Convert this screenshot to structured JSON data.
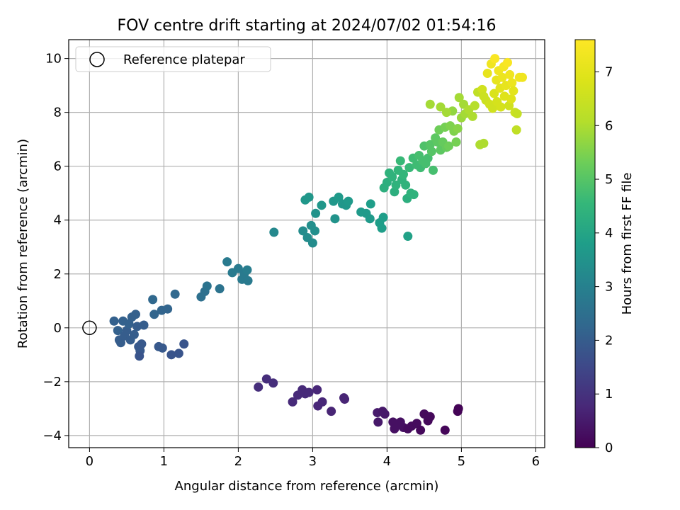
{
  "chart_data": {
    "type": "scatter",
    "title": "FOV centre drift starting at 2024/07/02 01:54:16",
    "xlabel": "Angular distance from reference (arcmin)",
    "ylabel": "Rotation from reference (arcmin)",
    "xlim": [
      -0.28,
      6.12
    ],
    "ylim": [
      -4.45,
      10.7
    ],
    "xticks": [
      0,
      1,
      2,
      3,
      4,
      5,
      6
    ],
    "xtick_labels": [
      "0",
      "1",
      "2",
      "3",
      "4",
      "5",
      "6"
    ],
    "yticks": [
      -4,
      -2,
      0,
      2,
      4,
      6,
      8,
      10
    ],
    "ytick_labels": [
      "−4",
      "−2",
      "0",
      "2",
      "4",
      "6",
      "8",
      "10"
    ],
    "grid": true,
    "legend": {
      "position": "top-left",
      "label": "Reference platepar",
      "marker": "open-circle"
    },
    "colorbar": {
      "label": "Hours from first FF file",
      "range": [
        0,
        7.6
      ],
      "ticks": [
        0,
        1,
        2,
        3,
        4,
        5,
        6,
        7
      ],
      "tick_labels": [
        "0",
        "1",
        "2",
        "3",
        "4",
        "5",
        "6",
        "7"
      ],
      "colormap": "viridis"
    },
    "reference_point": {
      "x": 0,
      "y": 0,
      "name": "Reference platepar"
    },
    "points": [
      {
        "x": 2.27,
        "y": -2.2,
        "t": 0.9
      },
      {
        "x": 2.38,
        "y": -1.9,
        "t": 0.9
      },
      {
        "x": 2.47,
        "y": -2.05,
        "t": 0.9
      },
      {
        "x": 2.73,
        "y": -2.75,
        "t": 0.8
      },
      {
        "x": 2.8,
        "y": -2.5,
        "t": 0.8
      },
      {
        "x": 2.86,
        "y": -2.3,
        "t": 0.8
      },
      {
        "x": 2.9,
        "y": -2.45,
        "t": 0.8
      },
      {
        "x": 2.95,
        "y": -2.4,
        "t": 0.8
      },
      {
        "x": 3.06,
        "y": -2.3,
        "t": 0.75
      },
      {
        "x": 3.07,
        "y": -2.9,
        "t": 0.75
      },
      {
        "x": 3.13,
        "y": -2.75,
        "t": 0.75
      },
      {
        "x": 3.25,
        "y": -3.1,
        "t": 0.7
      },
      {
        "x": 3.42,
        "y": -2.6,
        "t": 0.7
      },
      {
        "x": 3.43,
        "y": -2.65,
        "t": 0.7
      },
      {
        "x": 3.87,
        "y": -3.15,
        "t": 0.5
      },
      {
        "x": 3.88,
        "y": -3.5,
        "t": 0.45
      },
      {
        "x": 3.94,
        "y": -3.1,
        "t": 0.45
      },
      {
        "x": 3.97,
        "y": -3.2,
        "t": 0.45
      },
      {
        "x": 4.08,
        "y": -3.5,
        "t": 0.3
      },
      {
        "x": 4.1,
        "y": -3.75,
        "t": 0.3
      },
      {
        "x": 4.15,
        "y": -3.6,
        "t": 0.3
      },
      {
        "x": 4.18,
        "y": -3.5,
        "t": 0.3
      },
      {
        "x": 4.22,
        "y": -3.7,
        "t": 0.3
      },
      {
        "x": 4.28,
        "y": -3.75,
        "t": 0.2
      },
      {
        "x": 4.33,
        "y": -3.65,
        "t": 0.2
      },
      {
        "x": 4.4,
        "y": -3.55,
        "t": 0.2
      },
      {
        "x": 4.45,
        "y": -3.8,
        "t": 0.15
      },
      {
        "x": 4.5,
        "y": -3.2,
        "t": 0.15
      },
      {
        "x": 4.55,
        "y": -3.45,
        "t": 0.15
      },
      {
        "x": 4.58,
        "y": -3.3,
        "t": 0.15
      },
      {
        "x": 4.78,
        "y": -3.8,
        "t": 0.1
      },
      {
        "x": 4.95,
        "y": -3.1,
        "t": 0.05
      },
      {
        "x": 4.96,
        "y": -3.0,
        "t": 0.05
      },
      {
        "x": 0.33,
        "y": 0.25,
        "t": 2.1
      },
      {
        "x": 0.38,
        "y": -0.1,
        "t": 2.1
      },
      {
        "x": 0.4,
        "y": -0.45,
        "t": 2.0
      },
      {
        "x": 0.42,
        "y": -0.55,
        "t": 2.0
      },
      {
        "x": 0.45,
        "y": 0.25,
        "t": 2.1
      },
      {
        "x": 0.47,
        "y": -0.3,
        "t": 2.0
      },
      {
        "x": 0.5,
        "y": -0.1,
        "t": 2.0
      },
      {
        "x": 0.53,
        "y": 0.15,
        "t": 2.1
      },
      {
        "x": 0.55,
        "y": -0.45,
        "t": 2.0
      },
      {
        "x": 0.57,
        "y": 0.4,
        "t": 2.1
      },
      {
        "x": 0.6,
        "y": -0.25,
        "t": 2.0
      },
      {
        "x": 0.62,
        "y": 0.5,
        "t": 2.1
      },
      {
        "x": 0.64,
        "y": 0.05,
        "t": 2.0
      },
      {
        "x": 0.66,
        "y": -0.7,
        "t": 1.9
      },
      {
        "x": 0.68,
        "y": -0.85,
        "t": 1.9
      },
      {
        "x": 0.7,
        "y": -0.6,
        "t": 1.9
      },
      {
        "x": 0.67,
        "y": -1.05,
        "t": 1.8
      },
      {
        "x": 0.73,
        "y": 0.1,
        "t": 2.0
      },
      {
        "x": 0.85,
        "y": 1.05,
        "t": 2.3
      },
      {
        "x": 0.87,
        "y": 0.5,
        "t": 2.2
      },
      {
        "x": 0.93,
        "y": -0.7,
        "t": 1.9
      },
      {
        "x": 0.98,
        "y": -0.75,
        "t": 1.9
      },
      {
        "x": 0.97,
        "y": 0.65,
        "t": 2.2
      },
      {
        "x": 1.05,
        "y": 0.7,
        "t": 2.2
      },
      {
        "x": 1.1,
        "y": -1.0,
        "t": 1.8
      },
      {
        "x": 1.15,
        "y": 1.25,
        "t": 2.3
      },
      {
        "x": 1.2,
        "y": -0.95,
        "t": 1.8
      },
      {
        "x": 1.27,
        "y": -0.6,
        "t": 1.8
      },
      {
        "x": 1.5,
        "y": 1.15,
        "t": 2.5
      },
      {
        "x": 1.55,
        "y": 1.35,
        "t": 2.5
      },
      {
        "x": 1.58,
        "y": 1.55,
        "t": 2.6
      },
      {
        "x": 1.75,
        "y": 1.45,
        "t": 2.6
      },
      {
        "x": 1.85,
        "y": 2.45,
        "t": 2.8
      },
      {
        "x": 1.92,
        "y": 2.05,
        "t": 2.8
      },
      {
        "x": 2.0,
        "y": 2.2,
        "t": 2.8
      },
      {
        "x": 2.05,
        "y": 1.8,
        "t": 2.8
      },
      {
        "x": 2.08,
        "y": 2.0,
        "t": 2.8
      },
      {
        "x": 2.12,
        "y": 2.15,
        "t": 2.9
      },
      {
        "x": 2.13,
        "y": 1.75,
        "t": 2.8
      },
      {
        "x": 2.48,
        "y": 3.55,
        "t": 3.2
      },
      {
        "x": 2.87,
        "y": 3.6,
        "t": 3.3
      },
      {
        "x": 2.9,
        "y": 4.75,
        "t": 3.6
      },
      {
        "x": 2.93,
        "y": 3.35,
        "t": 3.3
      },
      {
        "x": 2.95,
        "y": 4.85,
        "t": 3.6
      },
      {
        "x": 2.98,
        "y": 3.8,
        "t": 3.4
      },
      {
        "x": 3.0,
        "y": 3.15,
        "t": 3.3
      },
      {
        "x": 3.03,
        "y": 3.6,
        "t": 3.4
      },
      {
        "x": 3.04,
        "y": 4.25,
        "t": 3.5
      },
      {
        "x": 3.12,
        "y": 4.55,
        "t": 3.6
      },
      {
        "x": 3.28,
        "y": 4.7,
        "t": 3.6
      },
      {
        "x": 3.3,
        "y": 4.05,
        "t": 3.5
      },
      {
        "x": 3.35,
        "y": 4.85,
        "t": 3.7
      },
      {
        "x": 3.4,
        "y": 4.6,
        "t": 3.6
      },
      {
        "x": 3.45,
        "y": 4.55,
        "t": 3.6
      },
      {
        "x": 3.48,
        "y": 4.7,
        "t": 3.7
      },
      {
        "x": 3.65,
        "y": 4.3,
        "t": 3.7
      },
      {
        "x": 3.72,
        "y": 4.25,
        "t": 3.7
      },
      {
        "x": 3.77,
        "y": 4.05,
        "t": 3.7
      },
      {
        "x": 3.78,
        "y": 4.6,
        "t": 3.8
      },
      {
        "x": 3.9,
        "y": 3.9,
        "t": 3.8
      },
      {
        "x": 3.93,
        "y": 3.7,
        "t": 3.8
      },
      {
        "x": 3.95,
        "y": 4.1,
        "t": 3.8
      },
      {
        "x": 4.28,
        "y": 3.4,
        "t": 3.9
      },
      {
        "x": 3.96,
        "y": 5.2,
        "t": 4.3
      },
      {
        "x": 4.0,
        "y": 5.4,
        "t": 4.3
      },
      {
        "x": 4.03,
        "y": 5.75,
        "t": 4.4
      },
      {
        "x": 4.07,
        "y": 5.6,
        "t": 4.4
      },
      {
        "x": 4.1,
        "y": 5.05,
        "t": 4.3
      },
      {
        "x": 4.12,
        "y": 5.3,
        "t": 4.4
      },
      {
        "x": 4.15,
        "y": 5.85,
        "t": 4.5
      },
      {
        "x": 4.18,
        "y": 6.2,
        "t": 4.6
      },
      {
        "x": 4.2,
        "y": 5.5,
        "t": 4.4
      },
      {
        "x": 4.22,
        "y": 5.7,
        "t": 4.5
      },
      {
        "x": 4.25,
        "y": 5.3,
        "t": 4.4
      },
      {
        "x": 4.27,
        "y": 4.8,
        "t": 4.3
      },
      {
        "x": 4.3,
        "y": 5.95,
        "t": 4.6
      },
      {
        "x": 4.32,
        "y": 5.0,
        "t": 4.4
      },
      {
        "x": 4.35,
        "y": 6.3,
        "t": 4.7
      },
      {
        "x": 4.36,
        "y": 4.95,
        "t": 4.4
      },
      {
        "x": 4.4,
        "y": 6.05,
        "t": 4.7
      },
      {
        "x": 4.43,
        "y": 6.4,
        "t": 4.8
      },
      {
        "x": 4.45,
        "y": 5.95,
        "t": 4.7
      },
      {
        "x": 4.48,
        "y": 6.2,
        "t": 4.8
      },
      {
        "x": 4.5,
        "y": 6.75,
        "t": 4.9
      },
      {
        "x": 4.52,
        "y": 6.1,
        "t": 4.8
      },
      {
        "x": 4.55,
        "y": 6.3,
        "t": 4.8
      },
      {
        "x": 4.58,
        "y": 6.8,
        "t": 5.0
      },
      {
        "x": 4.6,
        "y": 6.55,
        "t": 5.0
      },
      {
        "x": 4.62,
        "y": 5.85,
        "t": 4.8
      },
      {
        "x": 4.65,
        "y": 7.05,
        "t": 5.1
      },
      {
        "x": 4.68,
        "y": 6.9,
        "t": 5.1
      },
      {
        "x": 4.7,
        "y": 7.35,
        "t": 5.3
      },
      {
        "x": 4.72,
        "y": 6.6,
        "t": 5.1
      },
      {
        "x": 4.75,
        "y": 6.9,
        "t": 5.2
      },
      {
        "x": 4.78,
        "y": 7.45,
        "t": 5.4
      },
      {
        "x": 4.8,
        "y": 6.7,
        "t": 5.2
      },
      {
        "x": 4.83,
        "y": 6.75,
        "t": 5.3
      },
      {
        "x": 4.85,
        "y": 7.5,
        "t": 5.5
      },
      {
        "x": 4.88,
        "y": 8.05,
        "t": 5.7
      },
      {
        "x": 4.9,
        "y": 7.3,
        "t": 5.5
      },
      {
        "x": 4.93,
        "y": 6.9,
        "t": 5.4
      },
      {
        "x": 4.95,
        "y": 7.4,
        "t": 5.6
      },
      {
        "x": 4.97,
        "y": 8.55,
        "t": 5.9
      },
      {
        "x": 5.0,
        "y": 7.8,
        "t": 5.8
      },
      {
        "x": 5.03,
        "y": 8.3,
        "t": 5.9
      },
      {
        "x": 5.05,
        "y": 7.95,
        "t": 5.9
      },
      {
        "x": 5.1,
        "y": 8.1,
        "t": 6.0
      },
      {
        "x": 5.15,
        "y": 7.85,
        "t": 6.0
      },
      {
        "x": 5.18,
        "y": 8.25,
        "t": 6.1
      },
      {
        "x": 5.22,
        "y": 8.75,
        "t": 6.3
      },
      {
        "x": 5.25,
        "y": 6.8,
        "t": 6.0
      },
      {
        "x": 5.3,
        "y": 6.85,
        "t": 6.0
      },
      {
        "x": 4.58,
        "y": 8.3,
        "t": 5.9
      },
      {
        "x": 4.72,
        "y": 8.2,
        "t": 5.9
      },
      {
        "x": 4.8,
        "y": 8.0,
        "t": 5.9
      },
      {
        "x": 5.28,
        "y": 8.85,
        "t": 6.6
      },
      {
        "x": 5.3,
        "y": 8.6,
        "t": 6.5
      },
      {
        "x": 5.33,
        "y": 8.45,
        "t": 6.5
      },
      {
        "x": 5.35,
        "y": 9.45,
        "t": 7.1
      },
      {
        "x": 5.38,
        "y": 8.3,
        "t": 6.6
      },
      {
        "x": 5.4,
        "y": 9.8,
        "t": 7.3
      },
      {
        "x": 5.42,
        "y": 8.15,
        "t": 6.6
      },
      {
        "x": 5.44,
        "y": 8.7,
        "t": 6.8
      },
      {
        "x": 5.45,
        "y": 10.0,
        "t": 7.5
      },
      {
        "x": 5.47,
        "y": 9.2,
        "t": 7.1
      },
      {
        "x": 5.48,
        "y": 8.4,
        "t": 6.7
      },
      {
        "x": 5.5,
        "y": 9.55,
        "t": 7.3
      },
      {
        "x": 5.52,
        "y": 8.9,
        "t": 7.0
      },
      {
        "x": 5.53,
        "y": 8.2,
        "t": 6.7
      },
      {
        "x": 5.55,
        "y": 9.3,
        "t": 7.2
      },
      {
        "x": 5.57,
        "y": 9.7,
        "t": 7.4
      },
      {
        "x": 5.58,
        "y": 8.6,
        "t": 6.9
      },
      {
        "x": 5.6,
        "y": 9.0,
        "t": 7.1
      },
      {
        "x": 5.62,
        "y": 9.85,
        "t": 7.5
      },
      {
        "x": 5.64,
        "y": 8.25,
        "t": 6.6
      },
      {
        "x": 5.65,
        "y": 9.4,
        "t": 7.3
      },
      {
        "x": 5.67,
        "y": 8.5,
        "t": 6.9
      },
      {
        "x": 5.68,
        "y": 9.1,
        "t": 7.2
      },
      {
        "x": 5.7,
        "y": 8.8,
        "t": 7.0
      },
      {
        "x": 5.72,
        "y": 8.0,
        "t": 6.5
      },
      {
        "x": 5.74,
        "y": 7.35,
        "t": 6.3
      },
      {
        "x": 5.75,
        "y": 7.95,
        "t": 6.4
      },
      {
        "x": 5.78,
        "y": 9.3,
        "t": 7.3
      },
      {
        "x": 5.82,
        "y": 9.3,
        "t": 7.3
      }
    ]
  }
}
